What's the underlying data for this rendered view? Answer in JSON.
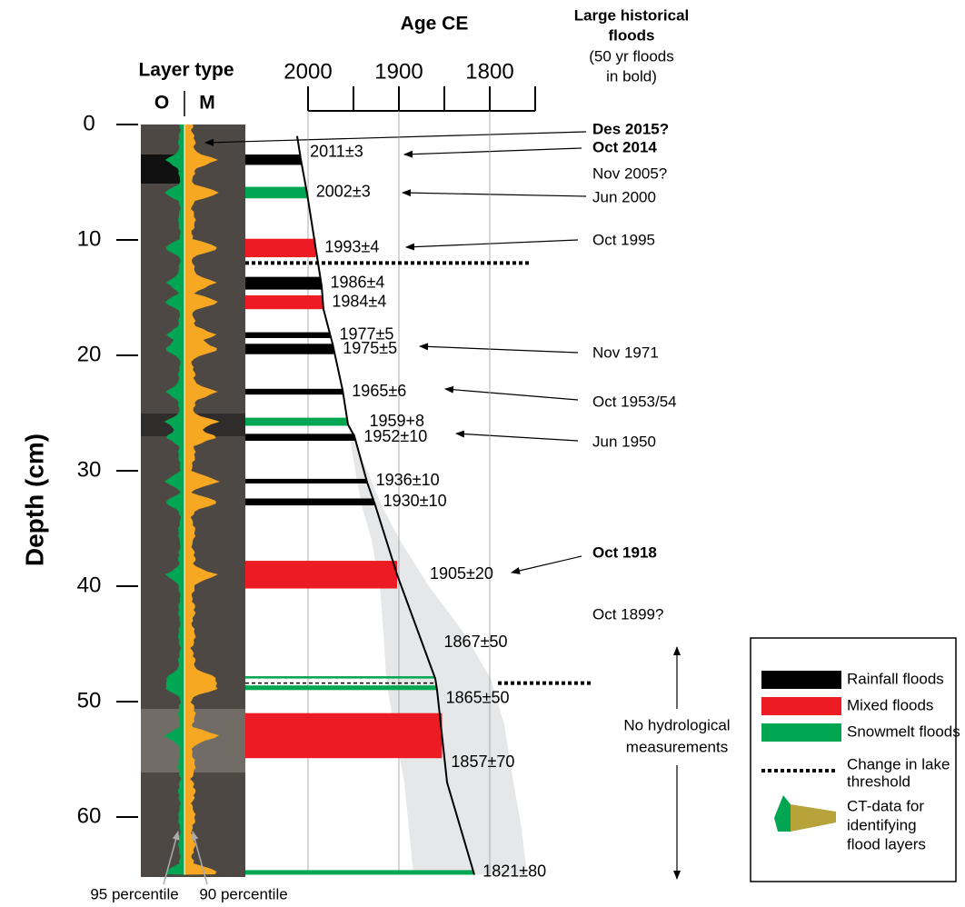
{
  "chart_data": {
    "type": "core-log",
    "title": "Age CE",
    "y_label": "Depth (cm)",
    "ylim": [
      0,
      65
    ],
    "yticks": [
      0,
      10,
      20,
      30,
      40,
      50,
      60
    ],
    "xlim": [
      2000,
      1750
    ],
    "xticks": [
      2000,
      1900,
      1800
    ],
    "xminor": [
      1950,
      1850,
      1750
    ],
    "grid": true,
    "layer_header": "Layer type",
    "layer_o": {
      "label": "O",
      "color": "#00a651"
    },
    "layer_m": {
      "label": "M",
      "color": "#f7a823"
    },
    "percentile_o": "95 percentile",
    "percentile_m": "90 percentile",
    "types": {
      "rainfall": {
        "name": [
          "Rainfall floods"
        ],
        "color": "#000000"
      },
      "mixed": {
        "name": [
          "Mixed floods"
        ],
        "color": "#ed1c24"
      },
      "snowmelt": {
        "name": [
          "Snowmelt floods"
        ],
        "color": "#00a651"
      }
    },
    "threshold_legend": [
      "Change in lake",
      "threshold"
    ],
    "ct_legend": [
      "CT-data for",
      "identifying",
      "flood layers"
    ],
    "age_model": {
      "depth": [
        1,
        3,
        6,
        11,
        14,
        16,
        19,
        23,
        26,
        27,
        31,
        33,
        39,
        48,
        49,
        57,
        65
      ],
      "age": [
        2012,
        2008,
        2001,
        1991,
        1985,
        1983,
        1973,
        1962,
        1956,
        1949,
        1935,
        1926,
        1902,
        1860,
        1858,
        1847,
        1817
      ]
    },
    "uncertainty": {
      "depth": [
        26,
        30,
        33,
        36,
        40,
        44,
        48,
        52,
        57,
        61,
        65
      ],
      "age_min": [
        1956,
        1948,
        1941,
        1930,
        1921,
        1917,
        1914,
        1906,
        1894,
        1889,
        1884
      ],
      "age_max": [
        1956,
        1935,
        1919,
        1899,
        1867,
        1829,
        1799,
        1784,
        1774,
        1765,
        1759
      ]
    },
    "layers": [
      {
        "top": 2.6,
        "bottom": 3.5,
        "type": "rainfall",
        "label": "2011±3"
      },
      {
        "top": 5.4,
        "bottom": 6.4,
        "type": "snowmelt",
        "label": "2002±3"
      },
      {
        "top": 9.9,
        "bottom": 11.5,
        "type": "mixed",
        "label": "1993±4"
      },
      {
        "top": 13.2,
        "bottom": 14.3,
        "type": "rainfall",
        "label": "1986±4"
      },
      {
        "top": 14.8,
        "bottom": 16,
        "type": "mixed",
        "label": "1984±4"
      },
      {
        "top": 18,
        "bottom": 18.5,
        "type": "rainfall",
        "label": "1977±5"
      },
      {
        "top": 19,
        "bottom": 19.9,
        "type": "rainfall",
        "label": "1975±5"
      },
      {
        "top": 22.9,
        "bottom": 23.4,
        "type": "rainfall",
        "label": "1965±6"
      },
      {
        "top": 25.4,
        "bottom": 26.1,
        "type": "snowmelt",
        "label": "1959+8"
      },
      {
        "top": 26.8,
        "bottom": 27.4,
        "type": "rainfall",
        "label": "1952±10"
      },
      {
        "top": 30.7,
        "bottom": 31.1,
        "type": "rainfall",
        "label": "1936±10"
      },
      {
        "top": 32.4,
        "bottom": 33,
        "type": "rainfall",
        "label": "1930±10"
      },
      {
        "top": 37.8,
        "bottom": 40.2,
        "type": "mixed",
        "label": "1905±20"
      },
      {
        "top": 47.8,
        "bottom": 48,
        "type": "snowmelt",
        "label": "1867±50"
      },
      {
        "top": 48.6,
        "bottom": 49,
        "type": "snowmelt",
        "label": "1865±50"
      },
      {
        "top": 51,
        "bottom": 54.9,
        "type": "mixed",
        "label": "1857±70"
      },
      {
        "top": 64.6,
        "bottom": 65,
        "type": "snowmelt",
        "label": "1821±80"
      }
    ],
    "thresholds": [
      12,
      48.4
    ],
    "floods_header": [
      "Large historical",
      "floods",
      "(50 yr floods",
      "in bold)"
    ],
    "floods": [
      {
        "label": "Des 2015?",
        "bold": true,
        "color": "#000000"
      },
      {
        "label": "Oct 2014",
        "bold": true,
        "color": "#000000"
      },
      {
        "label": "Nov 2005?",
        "bold": false,
        "color": "#000000"
      },
      {
        "label": "Jun 2000",
        "bold": false,
        "color": "#00a651"
      },
      {
        "label": "Oct 1995",
        "bold": false,
        "color": "#000000"
      },
      {
        "label": "Nov 1971",
        "bold": false,
        "color": "#000000"
      },
      {
        "label": "Oct 1953/54",
        "bold": false,
        "color": "#000000"
      },
      {
        "label": "Jun 1950",
        "bold": false,
        "color": "#00a651"
      },
      {
        "label": "Oct 1918",
        "bold": true,
        "color": "#000000"
      },
      {
        "label": "Oct 1899?",
        "bold": false,
        "color": "#000000"
      }
    ],
    "no_data_note": [
      "No hydrological",
      "measurements"
    ]
  }
}
